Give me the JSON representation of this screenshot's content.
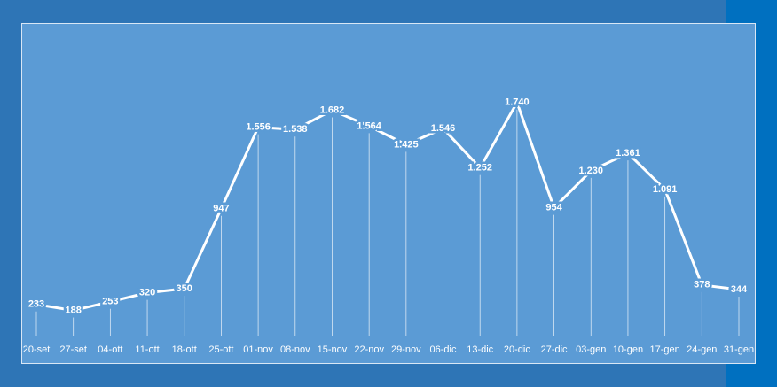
{
  "chart_data": {
    "type": "line",
    "categories": [
      "20-set",
      "27-set",
      "04-ott",
      "11-ott",
      "18-ott",
      "25-ott",
      "01-nov",
      "08-nov",
      "15-nov",
      "22-nov",
      "29-nov",
      "06-dic",
      "13-dic",
      "20-dic",
      "27-dic",
      "03-gen",
      "10-gen",
      "17-gen",
      "24-gen",
      "31-gen"
    ],
    "values": [
      233,
      188,
      253,
      320,
      350,
      947,
      1556,
      1538,
      1682,
      1564,
      1425,
      1546,
      1252,
      1740,
      954,
      1230,
      1361,
      1091,
      378,
      344
    ],
    "value_labels": [
      "233",
      "188",
      "253",
      "320",
      "350",
      "947",
      "1.556",
      "1.538",
      "1.682",
      "1.564",
      "1.425",
      "1.546",
      "1.252",
      "1.740",
      "954",
      "1.230",
      "1.361",
      "1.091",
      "378",
      "344"
    ],
    "color": "#ffffff",
    "ylim": [
      0,
      2300
    ]
  }
}
